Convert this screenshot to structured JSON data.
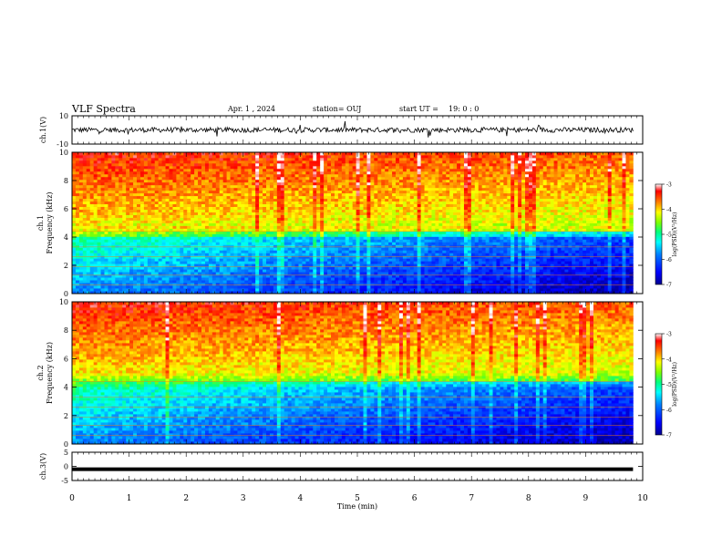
{
  "header": {
    "title": "VLF Spectra",
    "date": "Apr. 1 , 2024",
    "station": "station= OUJ",
    "start_label": "start UT =",
    "start_time": "19: 0 : 0"
  },
  "colors": {
    "spectrogram_scale": [
      "#000090",
      "#0000ff",
      "#0080ff",
      "#00ffff",
      "#00ff80",
      "#80ff00",
      "#ffff00",
      "#ff8000",
      "#ff0000",
      "#ffffff"
    ],
    "waveform": "#000000"
  },
  "chart_data": [
    {
      "type": "line",
      "name": "ch1-waveform",
      "ylabel": "ch.1(V)",
      "ylim": [
        -10,
        10
      ],
      "yticks": [
        "10",
        "-10"
      ],
      "xlim": [
        0,
        10
      ],
      "baseline_v": 0,
      "amplitude_v": 3
    },
    {
      "type": "heatmap",
      "name": "ch1-spectrogram",
      "ylabel": "ch.1\nFrequency (kHz)",
      "ylim": [
        0,
        10
      ],
      "yticks": [
        "0",
        "2",
        "4",
        "6",
        "8",
        "10"
      ],
      "xlim": [
        0,
        10
      ],
      "data_end_min": 9.83,
      "colorbar": {
        "label": "log(PSD)(V²/Hz)",
        "range": [
          -7,
          -3
        ],
        "ticks": [
          "-3",
          "-4",
          "-5",
          "-6",
          "-7"
        ]
      }
    },
    {
      "type": "heatmap",
      "name": "ch2-spectrogram",
      "ylabel": "ch.2\nFrequency (kHz)",
      "ylim": [
        0,
        10
      ],
      "yticks": [
        "0",
        "2",
        "4",
        "6",
        "8",
        "10"
      ],
      "xlim": [
        0,
        10
      ],
      "data_end_min": 9.83,
      "colorbar": {
        "label": "log(PSD)(V²/Hz)",
        "range": [
          -7,
          -3
        ],
        "ticks": [
          "-3",
          "-4",
          "-5",
          "-6",
          "-7"
        ]
      }
    },
    {
      "type": "line",
      "name": "ch3-waveform",
      "ylabel": "ch.3(V)",
      "ylim": [
        -5,
        5
      ],
      "yticks": [
        "5",
        "0",
        "-5"
      ],
      "xlim": [
        0,
        10
      ],
      "baseline_v": -1,
      "amplitude_v": 0.25
    }
  ],
  "xaxis": {
    "label": "Time (min)",
    "ticks": [
      "0",
      "1",
      "2",
      "3",
      "4",
      "5",
      "6",
      "7",
      "8",
      "9",
      "10"
    ]
  }
}
